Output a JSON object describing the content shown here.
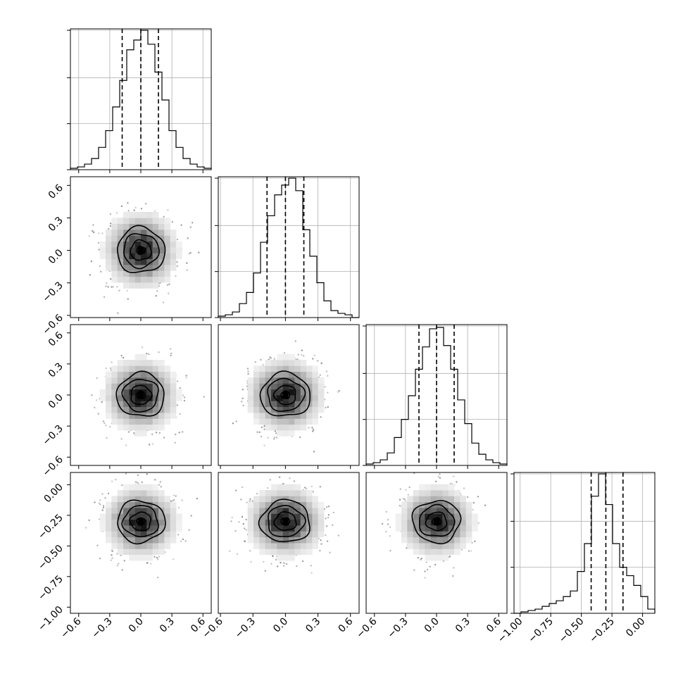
{
  "chart_data": {
    "type": "corner",
    "n_params": 4,
    "grid": true,
    "params": [
      {
        "range": [
          -0.68,
          0.68
        ],
        "ticks": [
          -0.6,
          -0.3,
          0.0,
          0.3,
          0.6
        ],
        "tick_labels": [
          "−0.6",
          "−0.3",
          "0.0",
          "0.3",
          "0.6"
        ],
        "quantiles": [
          -0.18,
          0.0,
          0.17
        ],
        "center": 0.0,
        "sigma": 0.16
      },
      {
        "range": [
          -0.62,
          0.68
        ],
        "ticks": [
          -0.6,
          -0.3,
          0.0,
          0.3,
          0.6
        ],
        "tick_labels": [
          "−0.6",
          "−0.3",
          "0.0",
          "0.3",
          "0.6"
        ],
        "quantiles": [
          -0.17,
          0.0,
          0.17
        ],
        "center": 0.0,
        "sigma": 0.16
      },
      {
        "range": [
          -0.68,
          0.68
        ],
        "ticks": [
          -0.6,
          -0.3,
          0.0,
          0.3,
          0.6
        ],
        "tick_labels": [
          "−0.6",
          "−0.3",
          "0.0",
          "0.3",
          "0.6"
        ],
        "quantiles": [
          -0.17,
          0.0,
          0.17
        ],
        "center": 0.0,
        "sigma": 0.16
      },
      {
        "range": [
          -1.05,
          0.1
        ],
        "ticks": [
          -1.0,
          -0.75,
          -0.5,
          -0.25,
          0.0
        ],
        "tick_labels": [
          "−1.00",
          "−0.75",
          "−0.50",
          "−0.25",
          "0.00"
        ],
        "quantiles": [
          -0.42,
          -0.3,
          -0.16
        ],
        "center": -0.3,
        "sigma": 0.13
      }
    ],
    "histograms": [
      {
        "param": 0,
        "bin_edges": [
          -0.68,
          -0.612,
          -0.544,
          -0.476,
          -0.408,
          -0.34,
          -0.272,
          -0.204,
          -0.136,
          -0.068,
          0.0,
          0.068,
          0.136,
          0.204,
          0.272,
          0.34,
          0.408,
          0.476,
          0.544,
          0.612,
          0.68
        ],
        "heights": [
          0.01,
          0.02,
          0.04,
          0.08,
          0.16,
          0.28,
          0.45,
          0.64,
          0.86,
          0.93,
          1.0,
          0.9,
          0.7,
          0.5,
          0.28,
          0.16,
          0.08,
          0.04,
          0.02,
          0.01
        ]
      },
      {
        "param": 1,
        "bin_edges": [
          -0.62,
          -0.555,
          -0.49,
          -0.425,
          -0.36,
          -0.295,
          -0.23,
          -0.165,
          -0.1,
          -0.035,
          0.03,
          0.095,
          0.16,
          0.225,
          0.29,
          0.355,
          0.42,
          0.485,
          0.55,
          0.615,
          0.68
        ],
        "heights": [
          0.01,
          0.02,
          0.04,
          0.1,
          0.18,
          0.32,
          0.54,
          0.73,
          0.88,
          0.95,
          1.0,
          0.91,
          0.63,
          0.44,
          0.25,
          0.12,
          0.05,
          0.03,
          0.02,
          0.0
        ]
      },
      {
        "param": 2,
        "bin_edges": [
          -0.68,
          -0.612,
          -0.544,
          -0.476,
          -0.408,
          -0.34,
          -0.272,
          -0.204,
          -0.136,
          -0.068,
          0.0,
          0.068,
          0.136,
          0.204,
          0.272,
          0.34,
          0.408,
          0.476,
          0.544,
          0.612,
          0.68
        ],
        "heights": [
          0.01,
          0.02,
          0.04,
          0.09,
          0.2,
          0.33,
          0.5,
          0.69,
          0.85,
          0.98,
          0.99,
          0.86,
          0.69,
          0.47,
          0.3,
          0.16,
          0.08,
          0.04,
          0.02,
          0.01
        ]
      },
      {
        "param": 3,
        "bin_edges": [
          -1.05,
          -0.9925,
          -0.935,
          -0.8775,
          -0.82,
          -0.7625,
          -0.705,
          -0.6475,
          -0.59,
          -0.5325,
          -0.475,
          -0.4175,
          -0.36,
          -0.3025,
          -0.245,
          -0.1875,
          -0.13,
          -0.0725,
          -0.015,
          0.0425,
          0.1
        ],
        "heights": [
          0.0,
          0.01,
          0.02,
          0.03,
          0.05,
          0.07,
          0.09,
          0.12,
          0.16,
          0.3,
          0.5,
          0.84,
          1.01,
          0.78,
          0.5,
          0.33,
          0.27,
          0.2,
          0.12,
          0.03
        ]
      }
    ],
    "scatter_panels": [
      {
        "x_param": 0,
        "y_param": 1,
        "contours": [
          0.04,
          0.1,
          0.17,
          0.23
        ]
      },
      {
        "x_param": 0,
        "y_param": 2,
        "contours": [
          0.04,
          0.1,
          0.17,
          0.23
        ]
      },
      {
        "x_param": 1,
        "y_param": 2,
        "contours": [
          0.04,
          0.1,
          0.17,
          0.23
        ]
      },
      {
        "x_param": 0,
        "y_param": 3,
        "contours": [
          0.04,
          0.1,
          0.17,
          0.23
        ]
      },
      {
        "x_param": 1,
        "y_param": 3,
        "contours": [
          0.04,
          0.1,
          0.17,
          0.23
        ]
      },
      {
        "x_param": 2,
        "y_param": 3,
        "contours": [
          0.04,
          0.1,
          0.17,
          0.23
        ]
      }
    ],
    "colors": {
      "ink": "#000000",
      "grid": "#b0b0b0",
      "points": "#9a9a9a"
    }
  }
}
